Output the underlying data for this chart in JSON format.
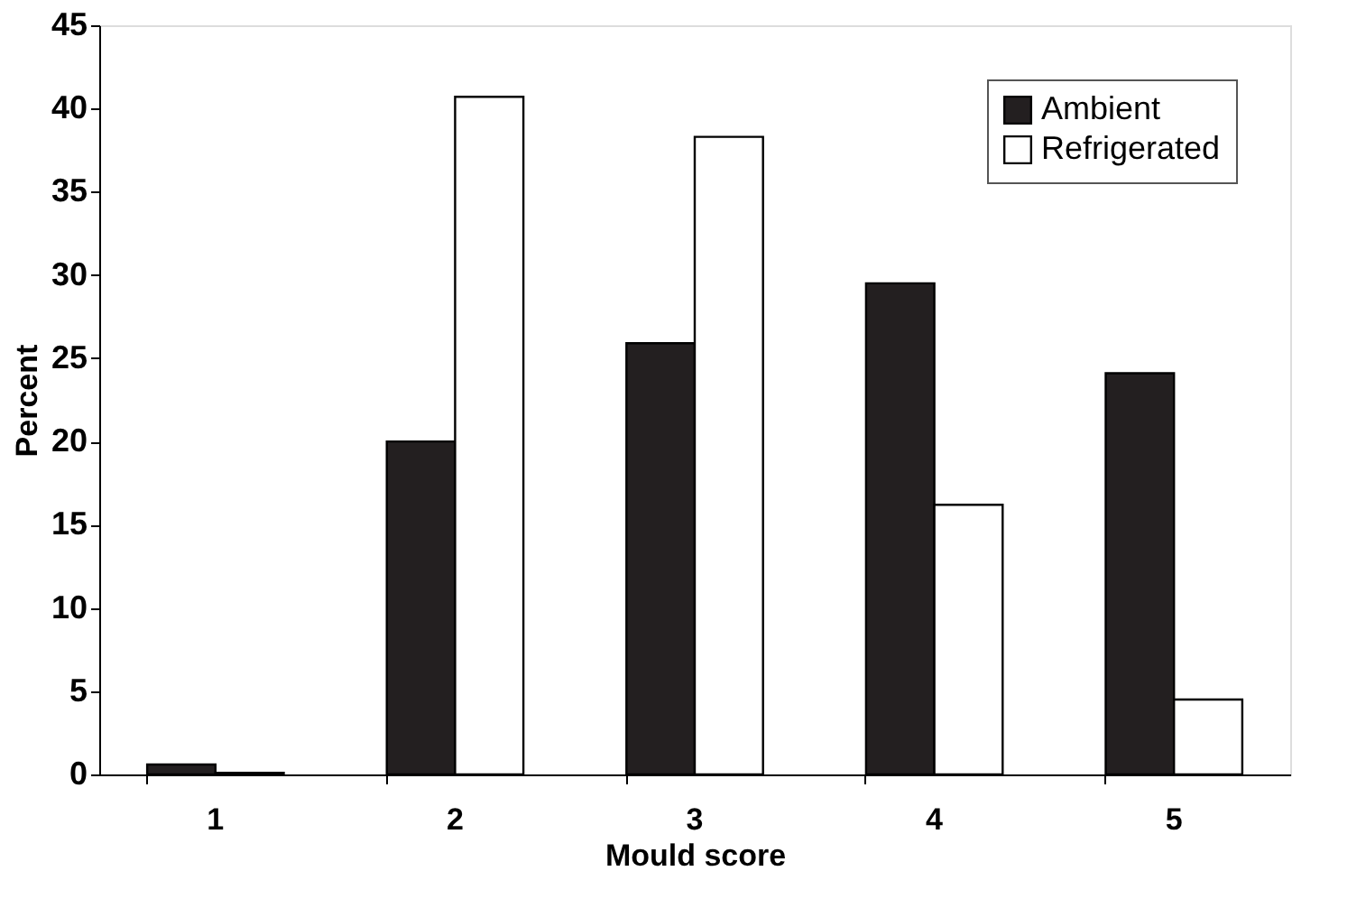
{
  "chart_data": {
    "type": "bar",
    "xlabel": "Mould score",
    "ylabel": "Percent",
    "categories": [
      "1",
      "2",
      "3",
      "4",
      "5"
    ],
    "series": [
      {
        "name": "Ambient",
        "color": "#231f20",
        "values": [
          0.6,
          20,
          25.9,
          29.5,
          24.1
        ]
      },
      {
        "name": "Refrigerated",
        "color": "#ffffff",
        "values": [
          0.1,
          40.7,
          38.3,
          16.2,
          4.5
        ]
      }
    ],
    "ylim": [
      0,
      45
    ],
    "yticks": [
      0,
      5,
      10,
      15,
      20,
      25,
      30,
      35,
      40,
      45
    ],
    "grid": false,
    "legend": "top right"
  }
}
